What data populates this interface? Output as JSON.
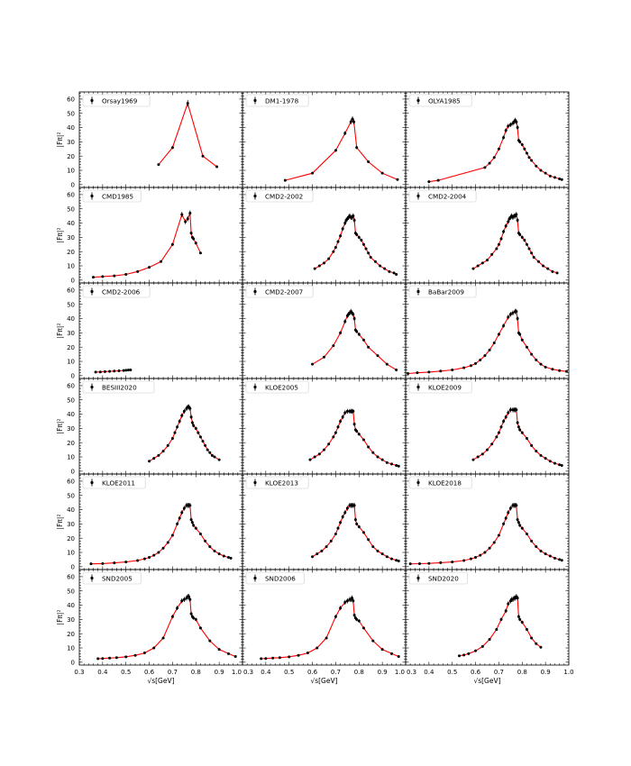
{
  "figure": {
    "xlabel": "√s[GeV]",
    "ylabel": "|Fπ|²",
    "xticks": [
      "0.3",
      "0.4",
      "0.5",
      "0.6",
      "0.7",
      "0.8",
      "0.9",
      "1.0"
    ],
    "yticks": [
      "0",
      "10",
      "20",
      "30",
      "40",
      "50",
      "60"
    ]
  },
  "colors": {
    "line": "#ff0000",
    "marker": "#000000",
    "frame": "#000000"
  },
  "chart_data": [
    {
      "type": "line",
      "legend": "Orsay1969",
      "xlim": [
        0.3,
        1.0
      ],
      "ylim": [
        -2,
        65
      ],
      "x": [
        0.64,
        0.7,
        0.765,
        0.83,
        0.89
      ],
      "y": [
        14,
        26,
        57,
        20,
        12.5
      ]
    },
    {
      "type": "line",
      "legend": "DM1-1978",
      "xlim": [
        0.3,
        1.0
      ],
      "ylim": [
        -2,
        65
      ],
      "x": [
        0.483,
        0.6,
        0.7,
        0.74,
        0.765,
        0.772,
        0.778,
        0.79,
        0.84,
        0.9,
        0.965
      ],
      "y": [
        3,
        8,
        24,
        36,
        44,
        46,
        44,
        26,
        16,
        8,
        3.5
      ]
    },
    {
      "type": "line",
      "legend": "OLYA1985",
      "xlim": [
        0.3,
        1.0
      ],
      "ylim": [
        -2,
        65
      ],
      "x": [
        0.4,
        0.44,
        0.64,
        0.66,
        0.68,
        0.7,
        0.72,
        0.73,
        0.74,
        0.75,
        0.76,
        0.765,
        0.77,
        0.775,
        0.78,
        0.785,
        0.79,
        0.8,
        0.81,
        0.82,
        0.83,
        0.84,
        0.86,
        0.88,
        0.9,
        0.92,
        0.94,
        0.96,
        0.97
      ],
      "y": [
        2,
        3,
        12,
        15,
        19,
        25,
        33,
        38,
        41,
        42,
        43,
        44,
        45,
        44,
        40,
        31,
        30,
        28,
        25,
        22,
        19,
        17,
        13,
        10,
        8,
        6,
        5,
        4,
        3.5
      ]
    },
    {
      "type": "line",
      "legend": "CMD1985",
      "xlim": [
        0.3,
        1.0
      ],
      "ylim": [
        -2,
        65
      ],
      "x": [
        0.36,
        0.4,
        0.45,
        0.5,
        0.55,
        0.6,
        0.65,
        0.7,
        0.74,
        0.755,
        0.765,
        0.775,
        0.78,
        0.785,
        0.79,
        0.8,
        0.82
      ],
      "y": [
        2,
        2.5,
        3,
        4,
        6,
        9,
        13,
        25,
        46,
        41,
        43,
        47,
        33,
        30,
        29,
        26,
        19
      ]
    },
    {
      "type": "line",
      "legend": "CMD2-2002",
      "xlim": [
        0.3,
        1.0
      ],
      "ylim": [
        -2,
        65
      ],
      "x": [
        0.61,
        0.63,
        0.65,
        0.67,
        0.69,
        0.7,
        0.71,
        0.72,
        0.73,
        0.74,
        0.745,
        0.75,
        0.755,
        0.76,
        0.765,
        0.77,
        0.775,
        0.78,
        0.785,
        0.79,
        0.8,
        0.81,
        0.82,
        0.83,
        0.84,
        0.85,
        0.87,
        0.89,
        0.91,
        0.93,
        0.95,
        0.96
      ],
      "y": [
        8,
        10,
        12,
        15,
        20,
        23,
        27,
        31,
        36,
        40,
        42,
        43,
        44,
        45,
        44,
        44,
        45,
        42,
        33,
        32,
        30,
        28,
        25,
        22,
        19,
        16,
        13,
        10,
        8,
        6,
        5,
        4
      ]
    },
    {
      "type": "line",
      "legend": "CMD2-2004",
      "xlim": [
        0.3,
        1.0
      ],
      "ylim": [
        -2,
        65
      ],
      "x": [
        0.59,
        0.61,
        0.63,
        0.65,
        0.67,
        0.69,
        0.7,
        0.71,
        0.72,
        0.73,
        0.74,
        0.745,
        0.75,
        0.755,
        0.76,
        0.765,
        0.77,
        0.775,
        0.78,
        0.785,
        0.79,
        0.8,
        0.81,
        0.82,
        0.83,
        0.84,
        0.85,
        0.87,
        0.89,
        0.91,
        0.93,
        0.95
      ],
      "y": [
        8,
        10,
        12,
        14,
        18,
        22,
        25,
        29,
        34,
        38,
        41,
        43,
        44,
        45,
        44,
        45,
        45,
        46,
        42,
        33,
        32,
        30,
        28,
        25,
        22,
        19,
        16,
        13,
        10,
        8,
        6,
        5
      ]
    },
    {
      "type": "line",
      "legend": "CMD2-2006",
      "xlim": [
        0.3,
        1.0
      ],
      "ylim": [
        -2,
        65
      ],
      "x": [
        0.37,
        0.39,
        0.41,
        0.43,
        0.45,
        0.47,
        0.49,
        0.5,
        0.51,
        0.52
      ],
      "y": [
        2.5,
        2.6,
        2.8,
        3.0,
        3.2,
        3.4,
        3.6,
        3.8,
        3.9,
        4.0
      ]
    },
    {
      "type": "line",
      "legend": "CMD2-2007",
      "xlim": [
        0.3,
        1.0
      ],
      "ylim": [
        -2,
        65
      ],
      "x": [
        0.6,
        0.65,
        0.69,
        0.72,
        0.74,
        0.75,
        0.755,
        0.76,
        0.765,
        0.77,
        0.775,
        0.78,
        0.785,
        0.79,
        0.8,
        0.82,
        0.84,
        0.88,
        0.92,
        0.96
      ],
      "y": [
        8,
        13,
        21,
        30,
        38,
        42,
        43,
        44,
        45,
        44,
        43,
        40,
        32,
        31,
        29,
        25,
        20,
        14,
        8,
        4
      ]
    },
    {
      "type": "line",
      "legend": "BaBar2009",
      "xlim": [
        0.3,
        1.0
      ],
      "ylim": [
        -2,
        65
      ],
      "x": [
        0.31,
        0.35,
        0.4,
        0.45,
        0.5,
        0.55,
        0.58,
        0.6,
        0.62,
        0.64,
        0.66,
        0.68,
        0.7,
        0.72,
        0.74,
        0.75,
        0.76,
        0.77,
        0.775,
        0.78,
        0.785,
        0.79,
        0.8,
        0.82,
        0.84,
        0.86,
        0.88,
        0.9,
        0.93,
        0.96,
        0.99
      ],
      "y": [
        1.5,
        2,
        2.5,
        3.2,
        4,
        5.5,
        7,
        8.5,
        11,
        14,
        18,
        23,
        29,
        35,
        41,
        43,
        44,
        45,
        45,
        40,
        30,
        29,
        25,
        20,
        15,
        11,
        8,
        6,
        4.5,
        3.5,
        3
      ]
    },
    {
      "type": "line",
      "legend": "BESIII2020",
      "xlim": [
        0.3,
        1.0
      ],
      "ylim": [
        -2,
        65
      ],
      "x": [
        0.6,
        0.62,
        0.64,
        0.66,
        0.68,
        0.7,
        0.71,
        0.72,
        0.73,
        0.74,
        0.75,
        0.76,
        0.765,
        0.77,
        0.775,
        0.78,
        0.785,
        0.79,
        0.8,
        0.81,
        0.82,
        0.83,
        0.84,
        0.85,
        0.86,
        0.87,
        0.88,
        0.9
      ],
      "y": [
        7,
        9,
        11,
        14,
        18,
        23,
        27,
        31,
        35,
        39,
        42,
        44,
        45,
        45,
        44,
        38,
        34,
        32,
        30,
        27,
        24,
        21,
        18,
        15,
        13,
        11,
        10,
        8
      ]
    },
    {
      "type": "line",
      "legend": "KLOE2005",
      "xlim": [
        0.3,
        1.0
      ],
      "ylim": [
        -2,
        65
      ],
      "x": [
        0.59,
        0.61,
        0.63,
        0.65,
        0.67,
        0.69,
        0.7,
        0.71,
        0.72,
        0.73,
        0.74,
        0.75,
        0.76,
        0.765,
        0.77,
        0.775,
        0.78,
        0.785,
        0.79,
        0.8,
        0.82,
        0.84,
        0.86,
        0.88,
        0.9,
        0.92,
        0.94,
        0.96,
        0.97
      ],
      "y": [
        8,
        10,
        12,
        15,
        19,
        24,
        27,
        31,
        35,
        38,
        41,
        42,
        42,
        42,
        42,
        42,
        33,
        29,
        28,
        26,
        22,
        17,
        13,
        10,
        8,
        6,
        5,
        4,
        3.5
      ]
    },
    {
      "type": "line",
      "legend": "KLOE2009",
      "xlim": [
        0.3,
        1.0
      ],
      "ylim": [
        -2,
        65
      ],
      "x": [
        0.59,
        0.61,
        0.63,
        0.65,
        0.67,
        0.69,
        0.7,
        0.71,
        0.72,
        0.73,
        0.74,
        0.75,
        0.76,
        0.765,
        0.77,
        0.775,
        0.78,
        0.785,
        0.79,
        0.8,
        0.82,
        0.84,
        0.86,
        0.88,
        0.9,
        0.92,
        0.94,
        0.96,
        0.97
      ],
      "y": [
        8,
        10,
        12,
        15,
        19,
        24,
        27,
        31,
        35,
        38,
        41,
        43,
        43,
        43,
        43,
        43,
        34,
        31,
        29,
        27,
        23,
        18,
        14,
        11,
        9,
        7,
        5.5,
        4.5,
        4
      ]
    },
    {
      "type": "line",
      "legend": "KLOE2011",
      "xlim": [
        0.3,
        1.0
      ],
      "ylim": [
        -2,
        65
      ],
      "x": [
        0.35,
        0.4,
        0.45,
        0.5,
        0.55,
        0.58,
        0.6,
        0.62,
        0.64,
        0.66,
        0.68,
        0.7,
        0.72,
        0.73,
        0.74,
        0.75,
        0.76,
        0.765,
        0.77,
        0.775,
        0.78,
        0.785,
        0.79,
        0.8,
        0.82,
        0.84,
        0.86,
        0.88,
        0.9,
        0.92,
        0.94,
        0.95
      ],
      "y": [
        2,
        2.2,
        2.7,
        3.3,
        4.3,
        5.5,
        6.5,
        8,
        10,
        13,
        17,
        22,
        30,
        34,
        38,
        41,
        43,
        43,
        43,
        43,
        33,
        31,
        29,
        27,
        23,
        18,
        14,
        11,
        9,
        7.5,
        6.5,
        6
      ]
    },
    {
      "type": "line",
      "legend": "KLOE2013",
      "xlim": [
        0.3,
        1.0
      ],
      "ylim": [
        -2,
        65
      ],
      "x": [
        0.6,
        0.62,
        0.64,
        0.66,
        0.68,
        0.7,
        0.71,
        0.72,
        0.73,
        0.74,
        0.75,
        0.76,
        0.765,
        0.77,
        0.775,
        0.78,
        0.785,
        0.79,
        0.8,
        0.82,
        0.84,
        0.86,
        0.88,
        0.9,
        0.92,
        0.94,
        0.96,
        0.97
      ],
      "y": [
        7,
        9,
        11,
        14,
        18,
        23,
        27,
        31,
        35,
        38,
        41,
        43,
        43,
        43,
        43,
        43,
        33,
        30,
        28,
        24,
        19,
        14,
        11,
        9,
        7,
        5.5,
        4.5,
        4
      ]
    },
    {
      "type": "line",
      "legend": "KLOE2018",
      "xlim": [
        0.3,
        1.0
      ],
      "ylim": [
        -2,
        65
      ],
      "x": [
        0.32,
        0.36,
        0.4,
        0.45,
        0.5,
        0.55,
        0.58,
        0.6,
        0.62,
        0.64,
        0.66,
        0.68,
        0.7,
        0.72,
        0.73,
        0.74,
        0.75,
        0.76,
        0.765,
        0.77,
        0.775,
        0.78,
        0.785,
        0.79,
        0.8,
        0.82,
        0.84,
        0.86,
        0.88,
        0.9,
        0.92,
        0.94,
        0.96,
        0.97
      ],
      "y": [
        2,
        2.1,
        2.3,
        2.8,
        3.3,
        4.3,
        5.5,
        6.5,
        8,
        10,
        13,
        17,
        22,
        30,
        34,
        38,
        41,
        43,
        43,
        43,
        43,
        33,
        31,
        29,
        27,
        23,
        18,
        14,
        11,
        9,
        7.5,
        6,
        5,
        4.5
      ]
    },
    {
      "type": "line",
      "legend": "SND2005",
      "xlim": [
        0.3,
        1.0
      ],
      "ylim": [
        -2,
        65
      ],
      "x": [
        0.38,
        0.4,
        0.43,
        0.46,
        0.5,
        0.54,
        0.58,
        0.62,
        0.66,
        0.7,
        0.72,
        0.74,
        0.75,
        0.76,
        0.765,
        0.77,
        0.775,
        0.78,
        0.785,
        0.79,
        0.8,
        0.82,
        0.86,
        0.9,
        0.94,
        0.97
      ],
      "y": [
        2.5,
        2.6,
        2.9,
        3.2,
        3.8,
        4.8,
        6.5,
        10,
        17,
        32,
        38,
        43,
        44,
        45,
        46,
        46,
        44,
        34,
        32,
        31,
        30,
        24,
        15,
        9,
        6,
        4
      ]
    },
    {
      "type": "line",
      "legend": "SND2006",
      "xlim": [
        0.3,
        1.0
      ],
      "ylim": [
        -2,
        65
      ],
      "x": [
        0.38,
        0.4,
        0.43,
        0.46,
        0.5,
        0.54,
        0.58,
        0.62,
        0.66,
        0.7,
        0.72,
        0.74,
        0.75,
        0.76,
        0.765,
        0.77,
        0.775,
        0.78,
        0.785,
        0.79,
        0.8,
        0.82,
        0.86,
        0.9,
        0.94,
        0.97
      ],
      "y": [
        2.5,
        2.6,
        2.9,
        3.2,
        3.8,
        4.8,
        6.5,
        10,
        17,
        32,
        38,
        42,
        43,
        44,
        44,
        45,
        43,
        33,
        31,
        30,
        29,
        24,
        15,
        9,
        6,
        4
      ]
    },
    {
      "type": "line",
      "legend": "SND2020",
      "xlim": [
        0.3,
        1.0
      ],
      "ylim": [
        -2,
        65
      ],
      "x": [
        0.53,
        0.55,
        0.57,
        0.6,
        0.63,
        0.66,
        0.69,
        0.71,
        0.73,
        0.74,
        0.75,
        0.755,
        0.76,
        0.765,
        0.77,
        0.775,
        0.78,
        0.785,
        0.79,
        0.8,
        0.82,
        0.84,
        0.86,
        0.88
      ],
      "y": [
        4.5,
        5,
        6,
        8,
        11,
        16,
        23,
        30,
        36,
        41,
        43,
        44,
        44,
        45,
        45,
        46,
        45,
        32,
        30,
        28,
        23,
        17,
        13,
        10.5
      ]
    }
  ]
}
